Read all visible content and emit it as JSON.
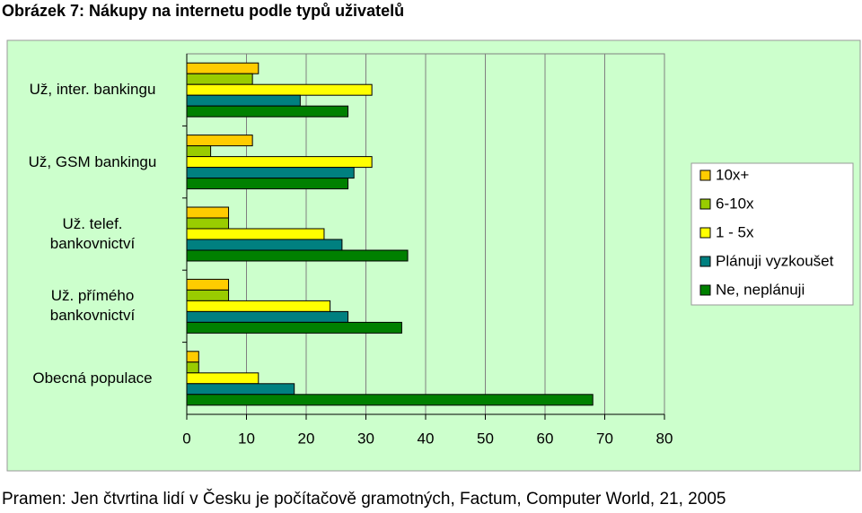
{
  "chart_data": {
    "type": "barh",
    "title": "Obrázek 7: Nákupy na internetu podle typů uživatelů",
    "source": "Pramen: Jen čtvrtina lidí v Česku je počítačově gramotných, Factum, Computer World, 21, 2005",
    "categories": [
      "Už, inter. bankingu",
      "Už, GSM bankingu",
      "Už. telef.\nbankovnictví",
      "Už. přímého\nbankovnictví",
      "Obecná populace"
    ],
    "series": [
      {
        "name": "10x+",
        "color": "#ffcc00",
        "values": [
          12,
          11,
          7,
          7,
          2
        ]
      },
      {
        "name": "6-10x",
        "color": "#99cc00",
        "values": [
          11,
          4,
          7,
          7,
          2
        ]
      },
      {
        "name": "1 - 5x",
        "color": "#ffff00",
        "values": [
          31,
          31,
          23,
          24,
          12
        ]
      },
      {
        "name": "Plánuji vyzkoušet",
        "color": "#008080",
        "values": [
          19,
          28,
          26,
          27,
          18
        ]
      },
      {
        "name": "Ne, neplánuji",
        "color": "#008000",
        "values": [
          27,
          27,
          37,
          36,
          68
        ]
      }
    ],
    "xlim": [
      0,
      80
    ],
    "xticks": [
      0,
      10,
      20,
      30,
      40,
      50,
      60,
      70,
      80
    ],
    "grid": true
  }
}
